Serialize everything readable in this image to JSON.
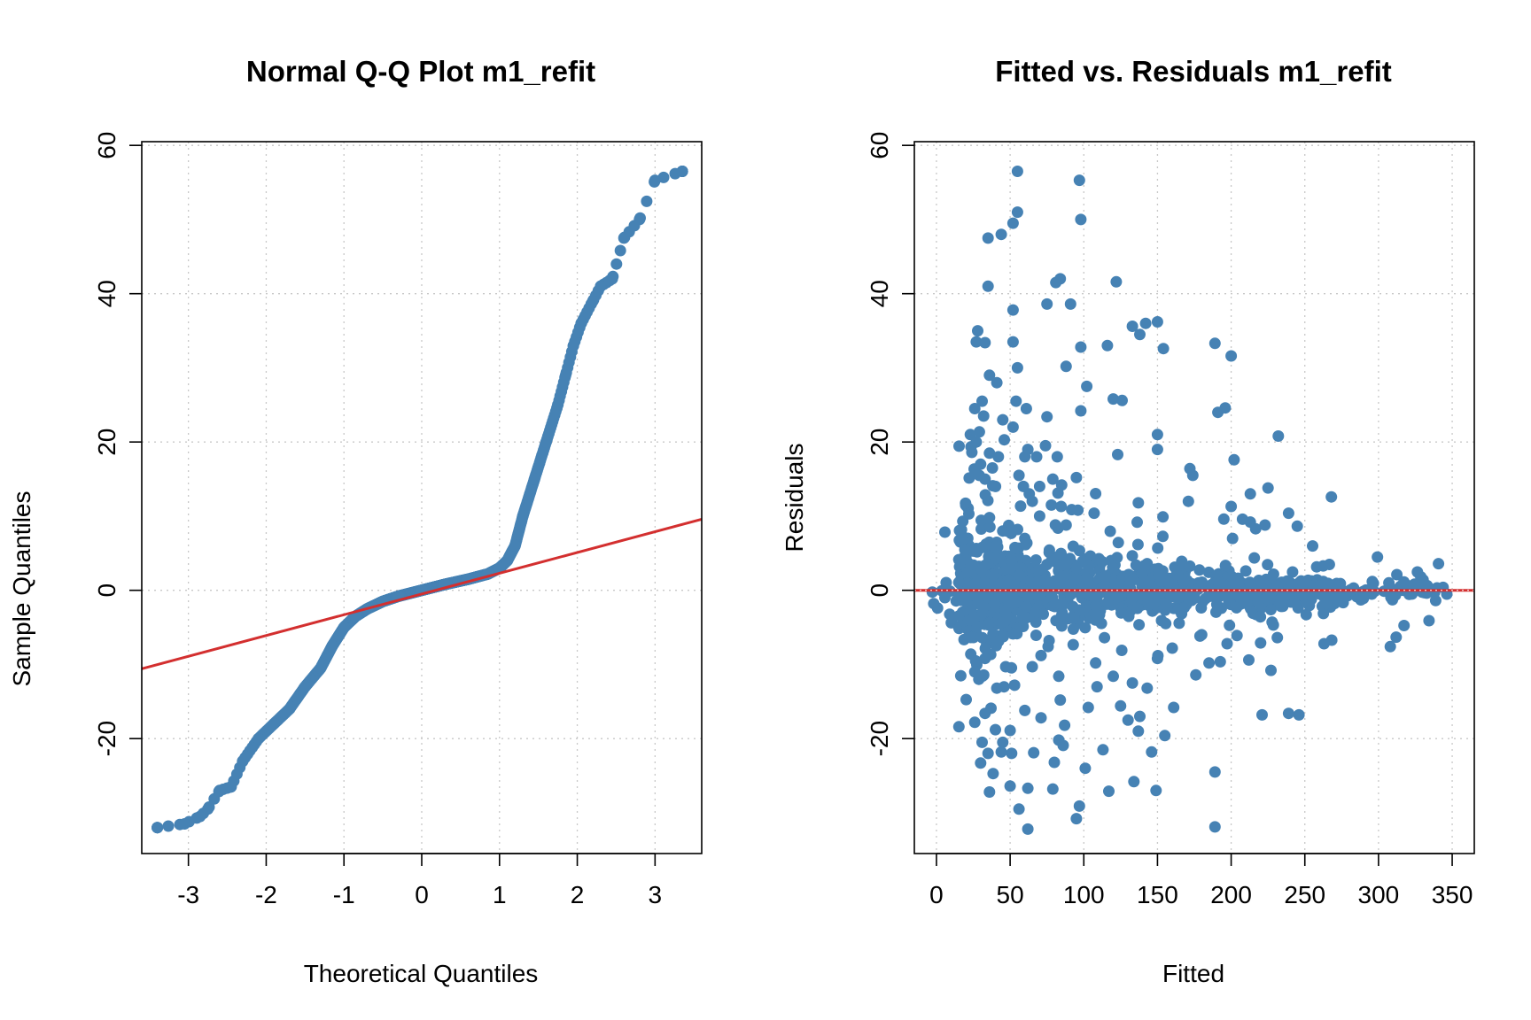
{
  "figure": {
    "background": "#ffffff"
  },
  "chart_data": [
    {
      "type": "scatter",
      "title": "Normal Q-Q Plot m1_refit",
      "xlabel": "Theoretical Quantiles",
      "ylabel": "Sample Quantiles",
      "xlim": [
        -3.6,
        3.6
      ],
      "ylim": [
        -35.5,
        60.5
      ],
      "xticks": [
        -3,
        -2,
        -1,
        0,
        1,
        2,
        3
      ],
      "yticks": [
        -20,
        0,
        20,
        40,
        60
      ],
      "xtick_labels": [
        "-3",
        "-2",
        "-1",
        "0",
        "1",
        "2",
        "3"
      ],
      "ytick_labels": [
        "-20",
        "0",
        "20",
        "40",
        "60"
      ],
      "grid": true,
      "point_color": "#4682b4",
      "line_color": "#d32f2f",
      "reference_line": {
        "intercept": -0.5,
        "slope": 2.8
      },
      "quantile_profile": {
        "q": [
          -3.4,
          -3.05,
          -2.85,
          -2.75,
          -2.6,
          -2.45,
          -2.3,
          -2.1,
          -1.9,
          -1.7,
          -1.5,
          -1.3,
          -1.15,
          -1.0,
          -0.85,
          -0.7,
          -0.5,
          -0.3,
          0.0,
          0.3,
          0.6,
          0.85,
          1.0,
          1.1,
          1.2,
          1.3,
          1.45,
          1.6,
          1.75,
          1.85,
          1.95,
          2.05,
          2.2,
          2.3,
          2.45,
          2.6,
          2.8,
          3.0,
          3.35
        ],
        "sample": [
          -32,
          -31.5,
          -30.5,
          -29.5,
          -27,
          -26.5,
          -23,
          -20,
          -18,
          -16,
          -13,
          -10.5,
          -7.5,
          -5,
          -3.5,
          -2.5,
          -1.5,
          -0.8,
          0,
          0.8,
          1.5,
          2.2,
          3,
          4,
          6,
          10,
          15,
          20,
          25,
          29,
          33,
          36,
          39,
          41,
          42,
          47.5,
          50,
          55.3,
          56.5
        ]
      }
    },
    {
      "type": "scatter",
      "title": "Fitted vs. Residuals  m1_refit",
      "xlabel": "Fitted",
      "ylabel": "Residuals",
      "xlim": [
        -15,
        365
      ],
      "ylim": [
        -35.5,
        60.5
      ],
      "xticks": [
        0,
        50,
        100,
        150,
        200,
        250,
        300,
        350
      ],
      "yticks": [
        -20,
        0,
        20,
        40,
        60
      ],
      "xtick_labels": [
        "0",
        "50",
        "100",
        "150",
        "200",
        "250",
        "300",
        "350"
      ],
      "ytick_labels": [
        "-20",
        "0",
        "20",
        "40",
        "60"
      ],
      "grid": true,
      "point_color": "#4682b4",
      "line_color": "#d32f2f",
      "reference_line": {
        "y": 0
      },
      "outlier_points": [
        [
          55,
          56.5
        ],
        [
          97,
          55.3
        ],
        [
          55,
          51
        ],
        [
          98,
          50
        ],
        [
          52,
          49.5
        ],
        [
          35,
          47.5
        ],
        [
          44,
          48
        ],
        [
          81,
          41.5
        ],
        [
          35,
          41
        ],
        [
          84,
          42
        ],
        [
          75,
          38.6
        ],
        [
          91,
          38.6
        ],
        [
          122,
          41.6
        ],
        [
          52,
          37.8
        ],
        [
          28,
          35
        ],
        [
          133,
          35.6
        ],
        [
          142,
          36
        ],
        [
          150,
          36.2
        ],
        [
          138,
          34.5
        ],
        [
          27,
          33.5
        ],
        [
          33,
          33.4
        ],
        [
          52,
          33.5
        ],
        [
          98,
          32.8
        ],
        [
          116,
          33
        ],
        [
          154,
          32.6
        ],
        [
          189,
          33.3
        ],
        [
          200,
          31.6
        ],
        [
          88,
          30.2
        ],
        [
          36,
          29
        ],
        [
          41,
          28
        ],
        [
          55,
          30
        ],
        [
          102,
          27.5
        ],
        [
          31,
          25.5
        ],
        [
          26,
          24.5
        ],
        [
          54,
          25.5
        ],
        [
          61,
          24.5
        ],
        [
          98,
          24.2
        ],
        [
          120,
          25.8
        ],
        [
          126,
          25.6
        ],
        [
          196,
          24.6
        ],
        [
          191,
          24
        ],
        [
          32,
          23.5
        ],
        [
          45,
          23
        ],
        [
          75,
          23.4
        ],
        [
          52,
          22
        ],
        [
          23,
          21
        ],
        [
          27,
          20
        ],
        [
          46,
          20.3
        ],
        [
          150,
          21
        ],
        [
          232,
          20.8
        ],
        [
          24,
          18.6
        ],
        [
          36,
          18.5
        ],
        [
          42,
          18
        ],
        [
          62,
          19
        ],
        [
          68,
          18
        ],
        [
          74,
          19.5
        ],
        [
          150,
          19
        ],
        [
          30,
          17
        ],
        [
          38,
          16.5
        ],
        [
          60,
          18
        ],
        [
          82,
          18
        ],
        [
          123,
          18.3
        ],
        [
          172,
          16.4
        ],
        [
          202,
          17.6
        ],
        [
          29,
          15.5
        ],
        [
          33,
          15
        ],
        [
          56,
          15.5
        ],
        [
          70,
          14
        ],
        [
          79,
          15
        ],
        [
          95,
          15.2
        ],
        [
          174,
          15.5
        ],
        [
          59,
          14
        ],
        [
          63,
          13
        ],
        [
          85,
          14.2
        ],
        [
          213,
          13
        ],
        [
          225,
          13.8
        ],
        [
          65,
          12
        ],
        [
          78,
          11.5
        ],
        [
          137,
          11.8
        ],
        [
          171,
          12
        ],
        [
          200,
          11.3
        ],
        [
          268,
          12.6
        ],
        [
          22,
          10.3
        ],
        [
          36,
          9.8
        ],
        [
          70,
          10
        ],
        [
          96,
          10.8
        ],
        [
          107,
          10.4
        ],
        [
          195,
          9.6
        ],
        [
          213,
          9.2
        ],
        [
          223,
          8.8
        ],
        [
          239,
          10.4
        ],
        [
          45,
          8
        ],
        [
          60,
          7
        ],
        [
          88,
          8.8
        ],
        [
          201,
          7
        ],
        [
          33,
          -9.2
        ],
        [
          71,
          -8.8
        ],
        [
          108,
          -9.8
        ],
        [
          150,
          -9.2
        ],
        [
          185,
          -9.8
        ],
        [
          212,
          -9.4
        ],
        [
          160,
          -7.8
        ],
        [
          220,
          -7.1
        ],
        [
          204,
          -6.1
        ],
        [
          180,
          -6
        ],
        [
          263,
          -7.2
        ],
        [
          308,
          -7.6
        ],
        [
          26,
          -11
        ],
        [
          47,
          -10.3
        ],
        [
          65,
          -10.3
        ],
        [
          83,
          -11.6
        ],
        [
          120,
          -11.6
        ],
        [
          176,
          -11.4
        ],
        [
          227,
          -10.8
        ],
        [
          41,
          -13.2
        ],
        [
          53,
          -12.8
        ],
        [
          109,
          -13
        ],
        [
          133,
          -12.5
        ],
        [
          143,
          -13.2
        ],
        [
          84,
          -14.8
        ],
        [
          37,
          -15.9
        ],
        [
          60,
          -16.2
        ],
        [
          103,
          -15.8
        ],
        [
          125,
          -15.6
        ],
        [
          161,
          -15.8
        ],
        [
          33,
          -16.6
        ],
        [
          71,
          -17.2
        ],
        [
          130,
          -17.5
        ],
        [
          138,
          -17
        ],
        [
          221,
          -16.8
        ],
        [
          239,
          -16.6
        ],
        [
          246,
          -16.8
        ],
        [
          26,
          -17.8
        ],
        [
          40,
          -18.8
        ],
        [
          50,
          -18.9
        ],
        [
          87,
          -18.2
        ],
        [
          137,
          -19
        ],
        [
          83,
          -20.2
        ],
        [
          155,
          -19.6
        ],
        [
          31,
          -20.5
        ],
        [
          45,
          -20.5
        ],
        [
          113,
          -21.5
        ],
        [
          35,
          -22
        ],
        [
          44,
          -21.8
        ],
        [
          66,
          -21.9
        ],
        [
          51,
          -22
        ],
        [
          146,
          -21.8
        ],
        [
          80,
          -23.2
        ],
        [
          30,
          -23.3
        ],
        [
          101,
          -24
        ],
        [
          189,
          -24.5
        ],
        [
          134,
          -25.8
        ],
        [
          50,
          -26.4
        ],
        [
          62,
          -26.7
        ],
        [
          79,
          -26.8
        ],
        [
          36,
          -27.2
        ],
        [
          117,
          -27.1
        ],
        [
          149,
          -27
        ],
        [
          97,
          -29.1
        ],
        [
          56,
          -29.5
        ],
        [
          95,
          -30.8
        ],
        [
          62,
          -32.2
        ],
        [
          189,
          -31.9
        ]
      ],
      "band_profile": {
        "x": [
          0,
          20,
          35,
          50,
          70,
          100,
          150,
          200,
          250,
          300,
          350
        ],
        "spread": [
          3,
          7,
          7,
          6,
          5,
          4,
          3,
          2.5,
          2,
          1.5,
          1
        ]
      }
    }
  ]
}
